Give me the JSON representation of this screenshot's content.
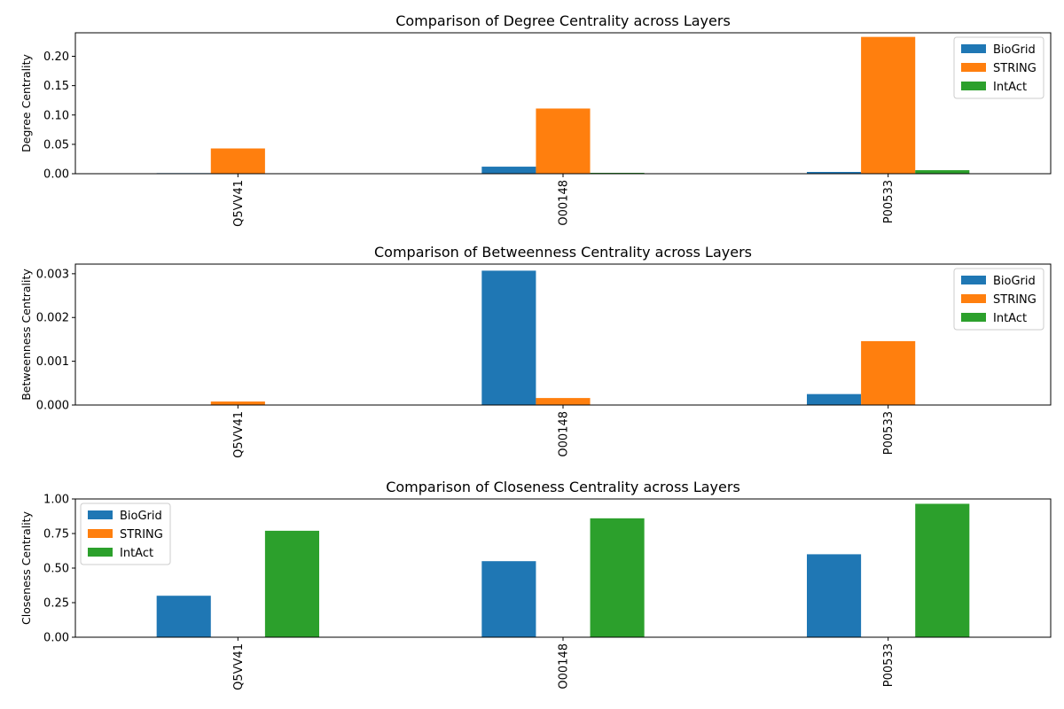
{
  "chart_data": [
    {
      "type": "bar",
      "title": "Comparison of Degree Centrality across Layers",
      "xlabel": "",
      "ylabel": "Degree Centrality",
      "categories": [
        "Q5VV41",
        "O00148",
        "P00533"
      ],
      "series": [
        {
          "name": "BioGrid",
          "values": [
            0.001,
            0.012,
            0.003
          ]
        },
        {
          "name": "STRING",
          "values": [
            0.043,
            0.111,
            0.233
          ]
        },
        {
          "name": "IntAct",
          "values": [
            0.0005,
            0.0015,
            0.006
          ]
        }
      ],
      "ylim": [
        0,
        0.24
      ],
      "yticks": [
        0.0,
        0.05,
        0.1,
        0.15,
        0.2
      ],
      "ytick_labels": [
        "0.00",
        "0.05",
        "0.10",
        "0.15",
        "0.20"
      ],
      "legend": "top-right",
      "grid": false
    },
    {
      "type": "bar",
      "title": "Comparison of Betweenness Centrality across Layers",
      "xlabel": "",
      "ylabel": "Betweenness Centrality",
      "categories": [
        "Q5VV41",
        "O00148",
        "P00533"
      ],
      "series": [
        {
          "name": "BioGrid",
          "values": [
            0.0,
            0.00307,
            0.00025
          ]
        },
        {
          "name": "STRING",
          "values": [
            8e-05,
            0.00016,
            0.00146
          ]
        },
        {
          "name": "IntAct",
          "values": [
            0.0,
            0.0,
            0.0
          ]
        }
      ],
      "ylim": [
        0,
        0.00322
      ],
      "yticks": [
        0.0,
        0.001,
        0.002,
        0.003
      ],
      "ytick_labels": [
        "0.000",
        "0.001",
        "0.002",
        "0.003"
      ],
      "legend": "top-right",
      "grid": false
    },
    {
      "type": "bar",
      "title": "Comparison of Closeness Centrality across Layers",
      "xlabel": "",
      "ylabel": "Closeness Centrality",
      "categories": [
        "Q5VV41",
        "O00148",
        "P00533"
      ],
      "series": [
        {
          "name": "BioGrid",
          "values": [
            0.3,
            0.55,
            0.6
          ]
        },
        {
          "name": "STRING",
          "values": [
            0.0,
            0.0,
            0.0
          ]
        },
        {
          "name": "IntAct",
          "values": [
            0.77,
            0.86,
            0.965
          ]
        }
      ],
      "ylim": [
        0,
        1.0
      ],
      "yticks": [
        0.0,
        0.25,
        0.5,
        0.75,
        1.0
      ],
      "ytick_labels": [
        "0.00",
        "0.25",
        "0.50",
        "0.75",
        "1.00"
      ],
      "legend": "top-left",
      "grid": false
    }
  ],
  "colors": {
    "BioGrid": "#1f77b4",
    "STRING": "#ff7f0e",
    "IntAct": "#2ca02c"
  }
}
